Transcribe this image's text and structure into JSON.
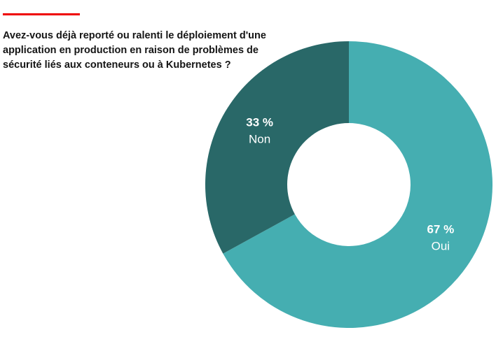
{
  "question_lines": [
    "Avez-vous déjà reporté ou ralenti le déploiement d'une",
    "application en production en raison de problèmes de",
    "sécurité liés aux conteneurs ou à Kubernetes ?"
  ],
  "colors": {
    "accent": "#ee0000",
    "oui": "#45aeb1",
    "non": "#296868"
  },
  "chart_data": {
    "type": "pie",
    "donut": true,
    "title": "Avez-vous déjà reporté ou ralenti le déploiement d'une application en production en raison de problèmes de sécurité liés aux conteneurs ou à Kubernetes ?",
    "slices": [
      {
        "label": "Oui",
        "value": 67,
        "value_label": "67 %",
        "color": "#45aeb1"
      },
      {
        "label": "Non",
        "value": 33,
        "value_label": "33 %",
        "color": "#296868"
      }
    ]
  }
}
